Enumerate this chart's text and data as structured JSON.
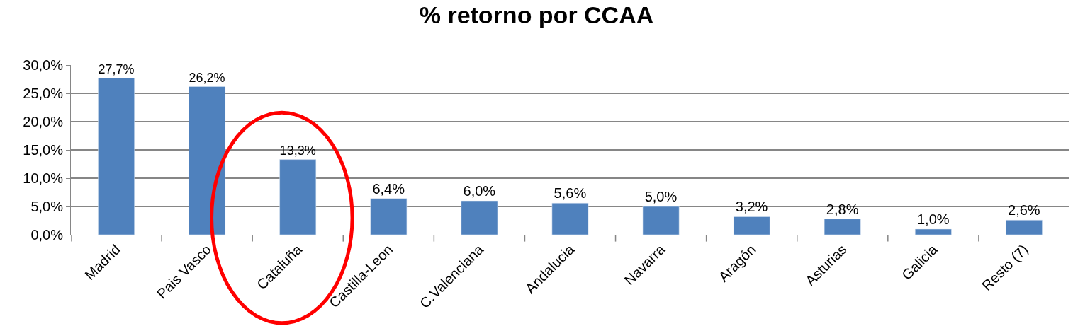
{
  "chart_data": {
    "type": "bar",
    "title": "% retorno por CCAA",
    "categories": [
      "Madrid",
      "Pais Vasco",
      "Cataluña",
      "Castilla-Leon",
      "C.Valenciana",
      "Andalucia",
      "Navarra",
      "Aragón",
      "Asturias",
      "Galicia",
      "Resto (7)"
    ],
    "values": [
      27.7,
      26.2,
      13.3,
      6.4,
      6.0,
      5.6,
      5.0,
      3.2,
      2.8,
      1.0,
      2.6
    ],
    "value_labels": [
      "27,7%",
      "26,2%",
      "13,3%",
      "6,4%",
      "6,0%",
      "5,6%",
      "5,0%",
      "3,2%",
      "2,8%",
      "1,0%",
      "2,6%"
    ],
    "color": "#4f81bd",
    "ylim": [
      0,
      30
    ],
    "yticks": [
      {
        "value": 0,
        "label": "0,0%"
      },
      {
        "value": 5,
        "label": "5,0%"
      },
      {
        "value": 10,
        "label": "10,0%"
      },
      {
        "value": 15,
        "label": "15,0%"
      },
      {
        "value": 20,
        "label": "20,0%"
      },
      {
        "value": 25,
        "label": "25,0%"
      },
      {
        "value": 30,
        "label": "30,0%"
      }
    ],
    "grid": "y"
  }
}
